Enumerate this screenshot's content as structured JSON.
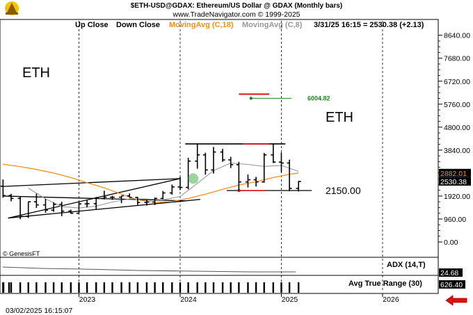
{
  "header": {
    "title": "$ETH-USD@GDAX:  Ethereum/US Dollar @ GDAX  (Monthly bars)",
    "subtitle": "www.TradeNavigator.com © 1999-2025"
  },
  "legend": {
    "up_close": "Up Close",
    "down_close": "Down Close",
    "ma18": "MovingAvg (C,18)",
    "ma8": "MovingAvg (C,8)",
    "readout": "3/31/25 16:15 = 2530.38 (+2.13)"
  },
  "colors": {
    "ma18": "#f0901e",
    "ma8": "#999999",
    "red_level": "#e01010",
    "green_target": "#1a8a1a",
    "badge_bg": "#000000",
    "badge_orange": "#f0901e",
    "arrow": "#e01010"
  },
  "annotations": {
    "eth_left": "ETH",
    "eth_right": "ETH",
    "target_label": "6004.82",
    "support_label": "2150.00",
    "copyright": "© GenesisFT"
  },
  "price_badges": {
    "ma18_value": "2882.01",
    "last_price": "2530.38"
  },
  "indicators": {
    "adx_label": "ADX (14,T)",
    "adx_value": "24.68",
    "atr_label": "Avg True Range (30)",
    "atr_value": "626.40"
  },
  "footer": {
    "timestamp": "03/02/2025 16:15:07"
  },
  "chart_data": {
    "type": "ohlc",
    "title": "$ETH-USD@GDAX: Ethereum/US Dollar @ GDAX (Monthly bars)",
    "y_ticks": [
      0,
      960,
      1920,
      2880,
      3840,
      4800,
      5760,
      6720,
      7680,
      8640
    ],
    "y_tick_labels": [
      "0.00",
      "960.00",
      "1920.00",
      "2880.00",
      "3840.00",
      "4800.00",
      "5760.00",
      "6720.00",
      "7680.00",
      "8640.00"
    ],
    "ylim": [
      -640,
      9300
    ],
    "x_labels": [
      "2023",
      "2024",
      "2025",
      "2026"
    ],
    "x_ticks": [
      2023,
      2024,
      2025,
      2026
    ],
    "xlim": [
      2022.22,
      2026.55
    ],
    "bars": [
      {
        "t": 2022.25,
        "o": 2330,
        "h": 2610,
        "l": 1850,
        "c": 1940
      },
      {
        "t": 2022.33,
        "o": 1940,
        "h": 2010,
        "l": 1700,
        "c": 1820
      },
      {
        "t": 2022.42,
        "o": 1820,
        "h": 1900,
        "l": 950,
        "c": 1070
      },
      {
        "t": 2022.5,
        "o": 1070,
        "h": 1690,
        "l": 1000,
        "c": 1680
      },
      {
        "t": 2022.58,
        "o": 1680,
        "h": 2020,
        "l": 1420,
        "c": 1550
      },
      {
        "t": 2022.67,
        "o": 1550,
        "h": 1800,
        "l": 1220,
        "c": 1330
      },
      {
        "t": 2022.75,
        "o": 1330,
        "h": 1660,
        "l": 1260,
        "c": 1570
      },
      {
        "t": 2022.83,
        "o": 1570,
        "h": 1680,
        "l": 1080,
        "c": 1290
      },
      {
        "t": 2022.92,
        "o": 1290,
        "h": 1350,
        "l": 1180,
        "c": 1200
      },
      {
        "t": 2023.0,
        "o": 1200,
        "h": 1680,
        "l": 1190,
        "c": 1590
      },
      {
        "t": 2023.08,
        "o": 1590,
        "h": 1740,
        "l": 1450,
        "c": 1600
      },
      {
        "t": 2023.17,
        "o": 1600,
        "h": 1880,
        "l": 1370,
        "c": 1820
      },
      {
        "t": 2023.25,
        "o": 1820,
        "h": 2140,
        "l": 1780,
        "c": 1870
      },
      {
        "t": 2023.33,
        "o": 1870,
        "h": 1930,
        "l": 1760,
        "c": 1870
      },
      {
        "t": 2023.42,
        "o": 1870,
        "h": 1930,
        "l": 1620,
        "c": 1930
      },
      {
        "t": 2023.5,
        "o": 1930,
        "h": 2030,
        "l": 1850,
        "c": 1860
      },
      {
        "t": 2023.58,
        "o": 1860,
        "h": 1880,
        "l": 1550,
        "c": 1650
      },
      {
        "t": 2023.67,
        "o": 1650,
        "h": 1750,
        "l": 1520,
        "c": 1670
      },
      {
        "t": 2023.75,
        "o": 1670,
        "h": 1860,
        "l": 1540,
        "c": 1820
      },
      {
        "t": 2023.83,
        "o": 1820,
        "h": 2130,
        "l": 1780,
        "c": 2050
      },
      {
        "t": 2023.92,
        "o": 2050,
        "h": 2400,
        "l": 1980,
        "c": 2300
      },
      {
        "t": 2024.0,
        "o": 2300,
        "h": 2720,
        "l": 2170,
        "c": 2280
      },
      {
        "t": 2024.08,
        "o": 2280,
        "h": 3520,
        "l": 2200,
        "c": 3380
      },
      {
        "t": 2024.17,
        "o": 3380,
        "h": 4090,
        "l": 3060,
        "c": 3640
      },
      {
        "t": 2024.25,
        "o": 3640,
        "h": 3730,
        "l": 2810,
        "c": 3010
      },
      {
        "t": 2024.33,
        "o": 3010,
        "h": 3970,
        "l": 2860,
        "c": 3760
      },
      {
        "t": 2024.42,
        "o": 3760,
        "h": 3890,
        "l": 3350,
        "c": 3430
      },
      {
        "t": 2024.5,
        "o": 3430,
        "h": 3560,
        "l": 3090,
        "c": 3230
      },
      {
        "t": 2024.58,
        "o": 3230,
        "h": 3350,
        "l": 2150,
        "c": 2510
      },
      {
        "t": 2024.67,
        "o": 2510,
        "h": 2820,
        "l": 2280,
        "c": 2600
      },
      {
        "t": 2024.75,
        "o": 2600,
        "h": 2720,
        "l": 2320,
        "c": 2510
      },
      {
        "t": 2024.83,
        "o": 2510,
        "h": 3720,
        "l": 2480,
        "c": 3640
      },
      {
        "t": 2024.92,
        "o": 3640,
        "h": 4100,
        "l": 3300,
        "c": 3340
      },
      {
        "t": 2025.0,
        "o": 3340,
        "h": 3740,
        "l": 2920,
        "c": 3300
      },
      {
        "t": 2025.08,
        "o": 3300,
        "h": 3440,
        "l": 2120,
        "c": 2240
      },
      {
        "t": 2025.17,
        "o": 2240,
        "h": 2550,
        "l": 2110,
        "c": 2530
      }
    ],
    "ma18": [
      {
        "t": 2022.25,
        "v": 3250
      },
      {
        "t": 2022.42,
        "v": 3150
      },
      {
        "t": 2022.58,
        "v": 3030
      },
      {
        "t": 2022.75,
        "v": 2880
      },
      {
        "t": 2022.92,
        "v": 2690
      },
      {
        "t": 2023.08,
        "v": 2480
      },
      {
        "t": 2023.25,
        "v": 2260
      },
      {
        "t": 2023.42,
        "v": 2000
      },
      {
        "t": 2023.58,
        "v": 1760
      },
      {
        "t": 2023.75,
        "v": 1650
      },
      {
        "t": 2023.92,
        "v": 1690
      },
      {
        "t": 2024.08,
        "v": 1820
      },
      {
        "t": 2024.25,
        "v": 2000
      },
      {
        "t": 2024.42,
        "v": 2200
      },
      {
        "t": 2024.58,
        "v": 2380
      },
      {
        "t": 2024.75,
        "v": 2520
      },
      {
        "t": 2024.92,
        "v": 2690
      },
      {
        "t": 2025.08,
        "v": 2830
      },
      {
        "t": 2025.17,
        "v": 2882
      }
    ],
    "ma8": [
      {
        "t": 2022.5,
        "v": 2250
      },
      {
        "t": 2022.67,
        "v": 1800
      },
      {
        "t": 2022.83,
        "v": 1480
      },
      {
        "t": 2023.0,
        "v": 1420
      },
      {
        "t": 2023.17,
        "v": 1500
      },
      {
        "t": 2023.33,
        "v": 1670
      },
      {
        "t": 2023.5,
        "v": 1800
      },
      {
        "t": 2023.67,
        "v": 1800
      },
      {
        "t": 2023.83,
        "v": 1760
      },
      {
        "t": 2024.0,
        "v": 1900
      },
      {
        "t": 2024.17,
        "v": 2450
      },
      {
        "t": 2024.33,
        "v": 2980
      },
      {
        "t": 2024.5,
        "v": 3300
      },
      {
        "t": 2024.67,
        "v": 3240
      },
      {
        "t": 2024.83,
        "v": 3160
      },
      {
        "t": 2025.0,
        "v": 3200
      },
      {
        "t": 2025.17,
        "v": 2950
      }
    ],
    "levels": {
      "support": 2150,
      "target": 6004.82,
      "resistance": 4100
    },
    "trend_lines": [
      {
        "from": {
          "t": 2022.25,
          "v": 2320
        },
        "to": {
          "t": 2024.0,
          "v": 2650
        }
      },
      {
        "from": {
          "t": 2022.3,
          "v": 1000
        },
        "to": {
          "t": 2024.0,
          "v": 2650
        }
      },
      {
        "from": {
          "t": 2022.25,
          "v": 1920
        },
        "to": {
          "t": 2024.05,
          "v": 1720
        }
      },
      {
        "from": {
          "t": 2022.3,
          "v": 1000
        },
        "to": {
          "t": 2024.2,
          "v": 1780
        }
      }
    ]
  }
}
